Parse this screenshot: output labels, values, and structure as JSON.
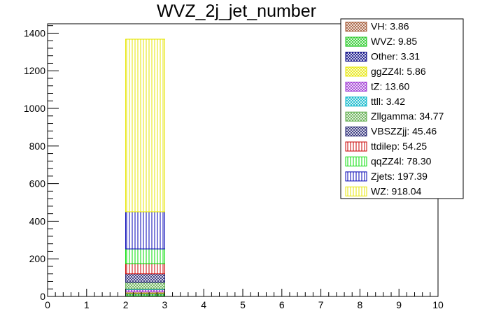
{
  "chart_data": {
    "type": "bar",
    "stacked": true,
    "title": "WVZ_2j_jet_number",
    "xlabel": "",
    "ylabel": "",
    "xlim": [
      0,
      10
    ],
    "ylim": [
      0,
      1450
    ],
    "x_ticks": [
      "0",
      "1",
      "2",
      "3",
      "4",
      "5",
      "6",
      "7",
      "8",
      "9",
      "10"
    ],
    "y_ticks": [
      "0",
      "200",
      "400",
      "600",
      "800",
      "1000",
      "1200",
      "1400"
    ],
    "bin": [
      2,
      3
    ],
    "legend_position": "top-right",
    "series": [
      {
        "name": "VH",
        "label": "VH: 3.86",
        "value": 3.86,
        "color": "#a0522d",
        "hatch": "cross"
      },
      {
        "name": "WVZ",
        "label": "WVZ: 9.85",
        "value": 9.85,
        "color": "#1ec81e",
        "hatch": "cross"
      },
      {
        "name": "Other",
        "label": "Other: 3.31",
        "value": 3.31,
        "color": "#000080",
        "hatch": "cross"
      },
      {
        "name": "ggZZ4l",
        "label": "ggZZ4l: 5.86",
        "value": 5.86,
        "color": "#e6e600",
        "hatch": "cross"
      },
      {
        "name": "tZ",
        "label": "tZ: 13.60",
        "value": 13.6,
        "color": "#9b30d2",
        "hatch": "cross"
      },
      {
        "name": "ttll",
        "label": "ttll: 3.42",
        "value": 3.42,
        "color": "#00b4c8",
        "hatch": "cross"
      },
      {
        "name": "Zllgamma",
        "label": "Zllgamma: 34.77",
        "value": 34.77,
        "color": "#5aaa46",
        "hatch": "cross"
      },
      {
        "name": "VBSZZjj",
        "label": "VBSZZjj: 45.46",
        "value": 45.46,
        "color": "#1e1e6e",
        "hatch": "cross"
      },
      {
        "name": "ttdilep",
        "label": "ttdilep: 54.25",
        "value": 54.25,
        "color": "#c80000",
        "hatch": "vertical"
      },
      {
        "name": "qqZZ4l",
        "label": "qqZZ4l: 78.30",
        "value": 78.3,
        "color": "#00dc00",
        "hatch": "vertical"
      },
      {
        "name": "Zjets",
        "label": "Zjets: 197.39",
        "value": 197.39,
        "color": "#0000b4",
        "hatch": "vertical"
      },
      {
        "name": "WZ",
        "label": "WZ: 918.04",
        "value": 918.04,
        "color": "#e6e600",
        "hatch": "vertical"
      }
    ]
  }
}
